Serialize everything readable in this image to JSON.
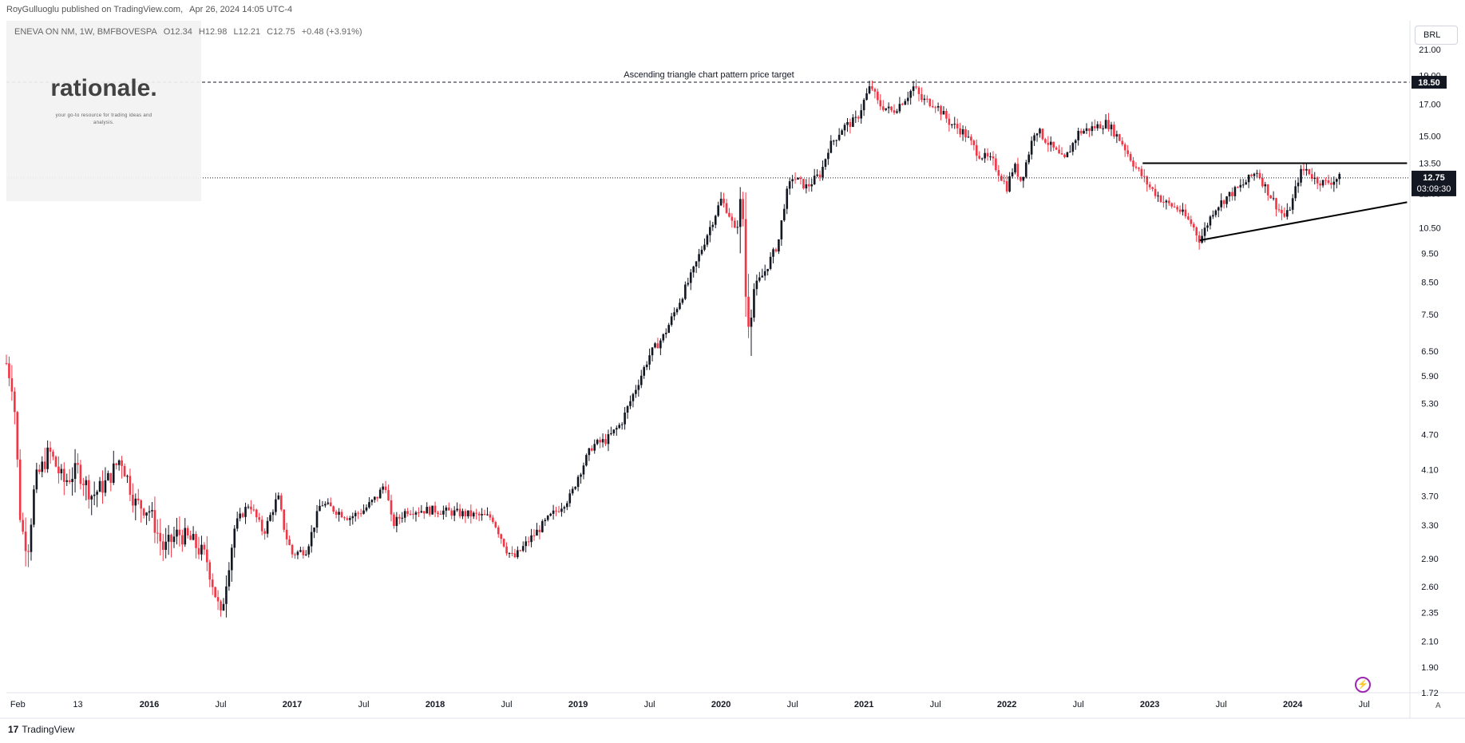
{
  "header": {
    "publisher": "RoyGulluoglu published on TradingView.com,",
    "date": "Apr 26, 2024 14:05 UTC-4"
  },
  "legend": {
    "symbol": "ENEVA ON NM, 1W, BMFBOVESPA",
    "open": "O12.34",
    "high": "H12.98",
    "low": "L12.21",
    "close": "C12.75",
    "change": "+0.48 (+3.91%)"
  },
  "branding": {
    "title": "rationale.",
    "subtitle": "your go-to resource for trading ideas and analysis."
  },
  "currency": "BRL",
  "auto_label": "A",
  "footer": {
    "logo_glyph": "17",
    "brand": "TradingView"
  },
  "chart_data": {
    "type": "candlestick",
    "yscale": "log",
    "ylim": [
      1.72,
      23.5
    ],
    "y_ticks": [
      "21.00",
      "19.00",
      "17.00",
      "15.00",
      "13.50",
      "12.00",
      "10.50",
      "9.50",
      "8.50",
      "7.50",
      "6.50",
      "5.90",
      "5.30",
      "4.70",
      "4.10",
      "3.70",
      "3.30",
      "2.90",
      "2.60",
      "2.35",
      "2.10",
      "1.90",
      "1.72"
    ],
    "x_ticks": [
      {
        "label": "Feb",
        "t": 2015.08
      },
      {
        "label": "13",
        "t": 2015.5
      },
      {
        "label": "2016",
        "t": 2016.0
      },
      {
        "label": "Jul",
        "t": 2016.5
      },
      {
        "label": "2017",
        "t": 2017.0
      },
      {
        "label": "Jul",
        "t": 2017.5
      },
      {
        "label": "2018",
        "t": 2018.0
      },
      {
        "label": "Jul",
        "t": 2018.5
      },
      {
        "label": "2019",
        "t": 2019.0
      },
      {
        "label": "Jul",
        "t": 2019.5
      },
      {
        "label": "2020",
        "t": 2020.0
      },
      {
        "label": "Jul",
        "t": 2020.5
      },
      {
        "label": "2021",
        "t": 2021.0
      },
      {
        "label": "Jul",
        "t": 2021.5
      },
      {
        "label": "2022",
        "t": 2022.0
      },
      {
        "label": "Jul",
        "t": 2022.5
      },
      {
        "label": "2023",
        "t": 2023.0
      },
      {
        "label": "Jul",
        "t": 2023.5
      },
      {
        "label": "2024",
        "t": 2024.0
      },
      {
        "label": "Jul",
        "t": 2024.5
      }
    ],
    "bold_year_labels": [
      "2016",
      "2017",
      "2018",
      "2019",
      "2020",
      "2021",
      "2022",
      "2023",
      "2024"
    ],
    "price_path": [
      [
        2015.0,
        6.2
      ],
      [
        2015.05,
        5.6
      ],
      [
        2015.1,
        3.3
      ],
      [
        2015.15,
        3.0
      ],
      [
        2015.2,
        3.9
      ],
      [
        2015.3,
        4.4
      ],
      [
        2015.4,
        3.9
      ],
      [
        2015.5,
        4.1
      ],
      [
        2015.6,
        3.7
      ],
      [
        2015.7,
        3.9
      ],
      [
        2015.8,
        4.3
      ],
      [
        2015.9,
        3.6
      ],
      [
        2016.0,
        3.5
      ],
      [
        2016.1,
        3.0
      ],
      [
        2016.2,
        3.2
      ],
      [
        2016.3,
        3.1
      ],
      [
        2016.4,
        2.9
      ],
      [
        2016.45,
        2.6
      ],
      [
        2016.5,
        2.3
      ],
      [
        2016.55,
        2.8
      ],
      [
        2016.6,
        3.3
      ],
      [
        2016.7,
        3.6
      ],
      [
        2016.8,
        3.2
      ],
      [
        2016.9,
        3.7
      ],
      [
        2016.95,
        3.2
      ],
      [
        2017.0,
        2.95
      ],
      [
        2017.1,
        3.0
      ],
      [
        2017.2,
        3.6
      ],
      [
        2017.3,
        3.5
      ],
      [
        2017.4,
        3.4
      ],
      [
        2017.5,
        3.5
      ],
      [
        2017.6,
        3.7
      ],
      [
        2017.65,
        3.9
      ],
      [
        2017.7,
        3.3
      ],
      [
        2017.8,
        3.5
      ],
      [
        2018.0,
        3.5
      ],
      [
        2018.2,
        3.45
      ],
      [
        2018.4,
        3.4
      ],
      [
        2018.5,
        3.0
      ],
      [
        2018.55,
        2.9
      ],
      [
        2018.65,
        3.1
      ],
      [
        2018.8,
        3.4
      ],
      [
        2018.95,
        3.7
      ],
      [
        2019.0,
        4.0
      ],
      [
        2019.1,
        4.5
      ],
      [
        2019.2,
        4.6
      ],
      [
        2019.3,
        4.9
      ],
      [
        2019.4,
        5.6
      ],
      [
        2019.5,
        6.4
      ],
      [
        2019.6,
        6.9
      ],
      [
        2019.7,
        7.8
      ],
      [
        2019.8,
        8.8
      ],
      [
        2019.9,
        10.2
      ],
      [
        2020.0,
        11.7
      ],
      [
        2020.05,
        11.2
      ],
      [
        2020.1,
        10.3
      ],
      [
        2020.15,
        11.6
      ],
      [
        2020.18,
        7.3
      ],
      [
        2020.22,
        8.2
      ],
      [
        2020.3,
        8.8
      ],
      [
        2020.4,
        9.9
      ],
      [
        2020.45,
        11.8
      ],
      [
        2020.5,
        12.8
      ],
      [
        2020.6,
        12.3
      ],
      [
        2020.7,
        13.0
      ],
      [
        2020.75,
        14.3
      ],
      [
        2020.85,
        15.5
      ],
      [
        2020.95,
        16.0
      ],
      [
        2021.0,
        17.2
      ],
      [
        2021.05,
        18.3
      ],
      [
        2021.1,
        17.0
      ],
      [
        2021.2,
        16.5
      ],
      [
        2021.3,
        17.5
      ],
      [
        2021.35,
        18.2
      ],
      [
        2021.4,
        17.3
      ],
      [
        2021.5,
        17.0
      ],
      [
        2021.6,
        15.8
      ],
      [
        2021.7,
        15.2
      ],
      [
        2021.8,
        14.0
      ],
      [
        2021.9,
        13.6
      ],
      [
        2022.0,
        12.3
      ],
      [
        2022.05,
        13.4
      ],
      [
        2022.1,
        12.6
      ],
      [
        2022.2,
        15.5
      ],
      [
        2022.3,
        14.5
      ],
      [
        2022.4,
        13.6
      ],
      [
        2022.5,
        15.2
      ],
      [
        2022.6,
        15.5
      ],
      [
        2022.7,
        15.8
      ],
      [
        2022.8,
        14.7
      ],
      [
        2022.9,
        13.3
      ],
      [
        2023.0,
        12.3
      ],
      [
        2023.1,
        11.6
      ],
      [
        2023.2,
        11.3
      ],
      [
        2023.3,
        10.6
      ],
      [
        2023.35,
        10.0
      ],
      [
        2023.45,
        11.3
      ],
      [
        2023.55,
        11.9
      ],
      [
        2023.65,
        12.4
      ],
      [
        2023.75,
        13.1
      ],
      [
        2023.8,
        12.4
      ],
      [
        2023.9,
        11.3
      ],
      [
        2023.95,
        10.9
      ],
      [
        2024.0,
        11.7
      ],
      [
        2024.05,
        13.0
      ],
      [
        2024.1,
        13.2
      ],
      [
        2024.15,
        12.7
      ],
      [
        2024.22,
        12.5
      ],
      [
        2024.28,
        12.6
      ],
      [
        2024.32,
        12.75
      ]
    ],
    "drawings": {
      "price_target": {
        "price": 18.5,
        "label": "Ascending triangle chart pattern price target"
      },
      "resistance": {
        "price": 13.5,
        "t_start": 2022.95,
        "t_end": 2024.8
      },
      "support": {
        "p_start": 10.0,
        "p_end": 11.6,
        "t_start": 2023.35,
        "t_end": 2024.8
      },
      "last_price_line": 12.75
    },
    "price_label": "18.50",
    "last_price_label": "12.75",
    "countdown": "03:09:30",
    "colors": {
      "up": "#131722",
      "down": "#f23645",
      "drawing": "#000000",
      "dashed": "#131722",
      "label_bg": "#131722"
    }
  }
}
